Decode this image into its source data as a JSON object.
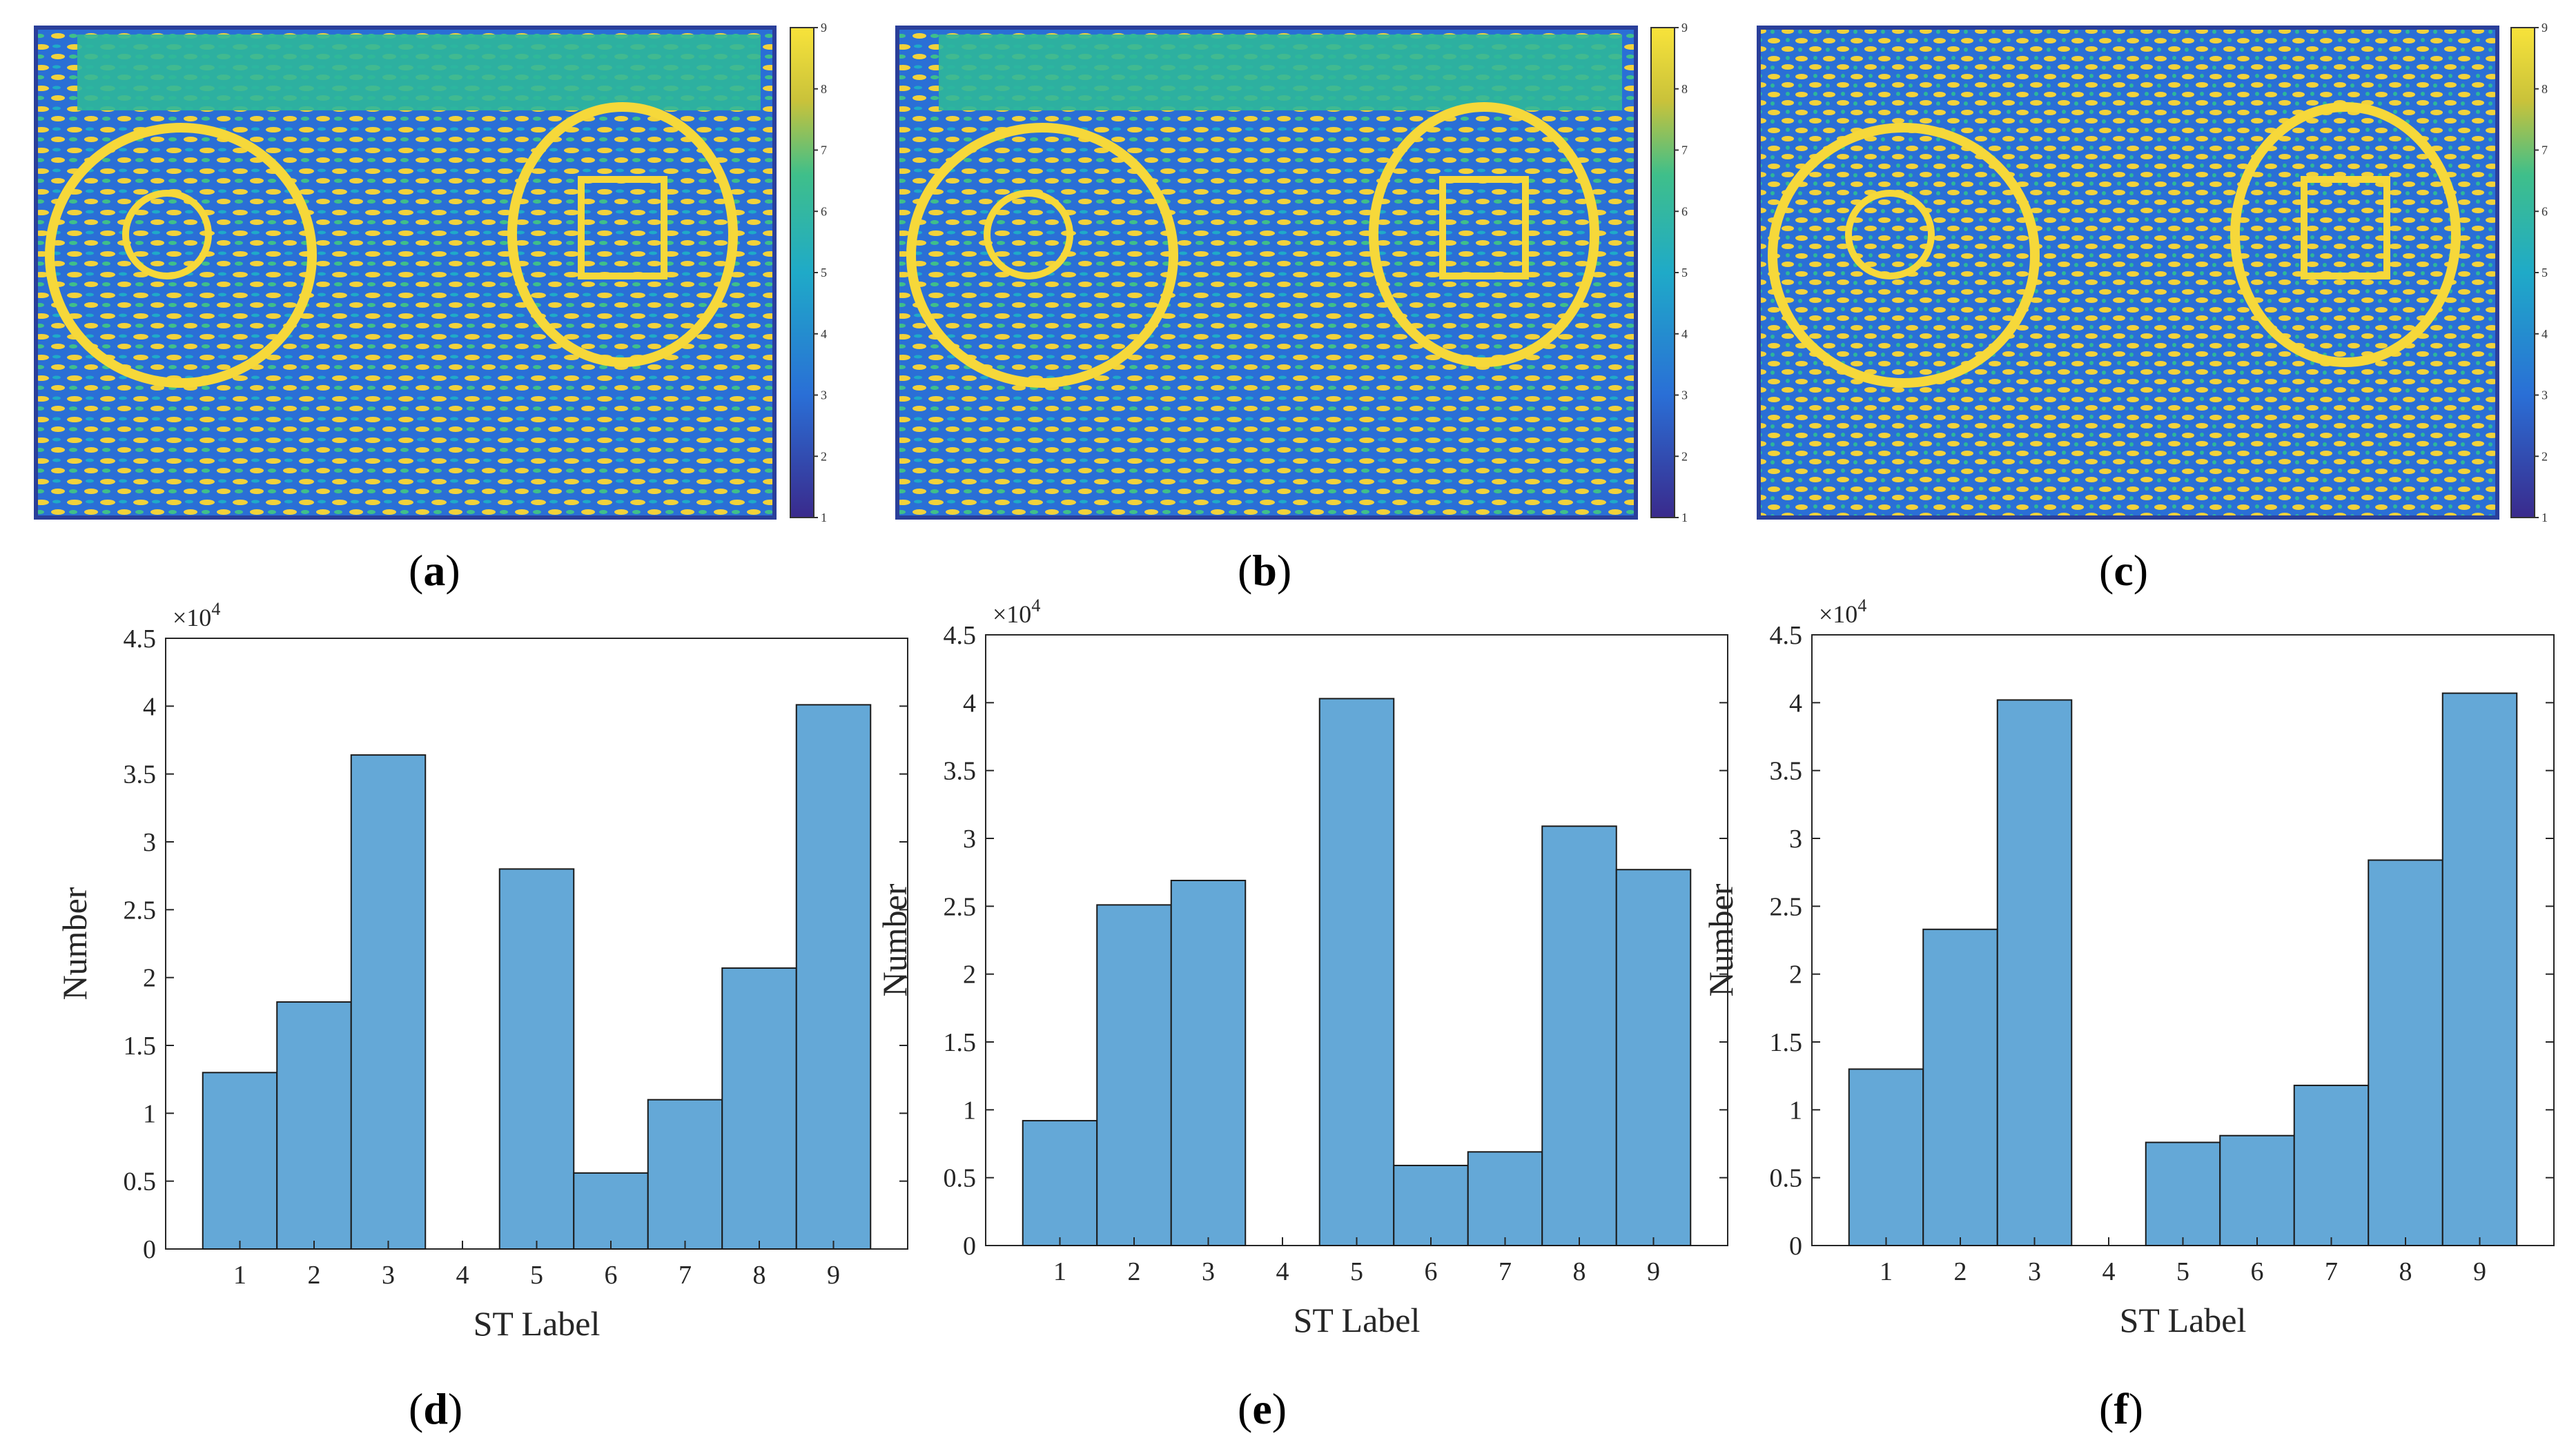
{
  "figure": {
    "captions": {
      "a": "a",
      "b": "b",
      "c": "c",
      "d": "d",
      "e": "e",
      "f": "f"
    },
    "colorbar": {
      "ticks": [
        "1",
        "2",
        "3",
        "4",
        "5",
        "6",
        "7",
        "8",
        "9"
      ]
    },
    "colors": {
      "bar_fill": "#64a8d7",
      "bar_stroke": "#1a1a1a",
      "map_low": "#3a2a8c",
      "map_mid": "#2db79a",
      "map_high": "#f6d83a"
    }
  },
  "chart_data": [
    {
      "type": "bar",
      "panel": "d",
      "categories": [
        "1",
        "2",
        "3",
        "4",
        "5",
        "6",
        "7",
        "8",
        "9"
      ],
      "values": [
        1.3,
        1.82,
        3.64,
        0,
        2.8,
        0.56,
        1.1,
        2.07,
        4.01
      ],
      "xlabel": "ST Label",
      "ylabel": "Number",
      "exponent_label": "×10",
      "exponent": "4",
      "ylim": [
        0,
        4.5
      ],
      "yticks": [
        "0",
        "0.5",
        "1",
        "1.5",
        "2",
        "2.5",
        "3",
        "3.5",
        "4",
        "4.5"
      ]
    },
    {
      "type": "bar",
      "panel": "e",
      "categories": [
        "1",
        "2",
        "3",
        "4",
        "5",
        "6",
        "7",
        "8",
        "9"
      ],
      "values": [
        0.92,
        2.51,
        2.69,
        0,
        4.03,
        0.59,
        0.69,
        3.09,
        2.77
      ],
      "xlabel": "ST Label",
      "ylabel": "Number",
      "exponent_label": "×10",
      "exponent": "4",
      "ylim": [
        0,
        4.5
      ],
      "yticks": [
        "0",
        "0.5",
        "1",
        "1.5",
        "2",
        "2.5",
        "3",
        "3.5",
        "4",
        "4.5"
      ]
    },
    {
      "type": "bar",
      "panel": "f",
      "categories": [
        "1",
        "2",
        "3",
        "4",
        "5",
        "6",
        "7",
        "8",
        "9"
      ],
      "values": [
        1.3,
        2.33,
        4.02,
        0,
        0.76,
        0.81,
        1.18,
        2.84,
        4.07
      ],
      "xlabel": "ST Label",
      "ylabel": "Number",
      "exponent_label": "×10",
      "exponent": "4",
      "ylim": [
        0,
        4.5
      ],
      "yticks": [
        "0",
        "0.5",
        "1",
        "1.5",
        "2",
        "2.5",
        "3",
        "3.5",
        "4",
        "4.5"
      ]
    }
  ]
}
